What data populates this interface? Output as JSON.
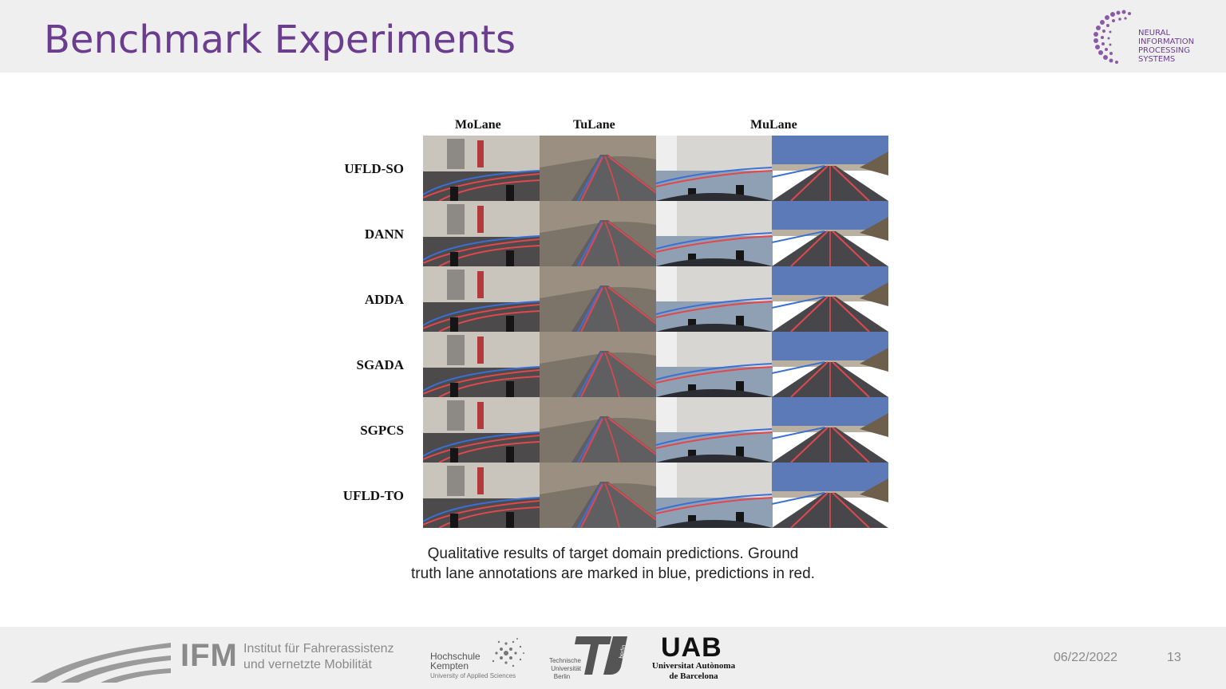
{
  "slide": {
    "title": "Benchmark Experiments",
    "brand_logo": {
      "line1": "NEURAL INFORMATION",
      "line2": "PROCESSING SYSTEMS"
    }
  },
  "figure": {
    "column_headers": [
      "MoLane",
      "TuLane",
      "MuLane"
    ],
    "row_labels": [
      "UFLD-SO",
      "DANN",
      "ADDA",
      "SGADA",
      "SGPCS",
      "UFLD-TO"
    ],
    "caption_line1": "Qualitative results of target domain predictions. Ground",
    "caption_line2": "truth lane annotations are marked in blue, predictions in red.",
    "ground_truth_color": "#3b6fd6",
    "prediction_color": "#e0484e"
  },
  "footer": {
    "ifm": {
      "acronym": "IFM",
      "line1": "Institut für Fahrerassistenz",
      "line2": "und vernetzte Mobilität"
    },
    "hochschule": {
      "line1": "Hochschule",
      "line2": "Kempten",
      "line3": "University of Applied Sciences"
    },
    "tu_berlin": {
      "line1": "Technische",
      "line2": "Universität",
      "line3": "Berlin",
      "vertical": "berlin"
    },
    "uab": {
      "acronym": "UAB",
      "line1": "Universitat Autònoma",
      "line2": "de Barcelona"
    },
    "date": "06/22/2022",
    "page_number": "13"
  }
}
